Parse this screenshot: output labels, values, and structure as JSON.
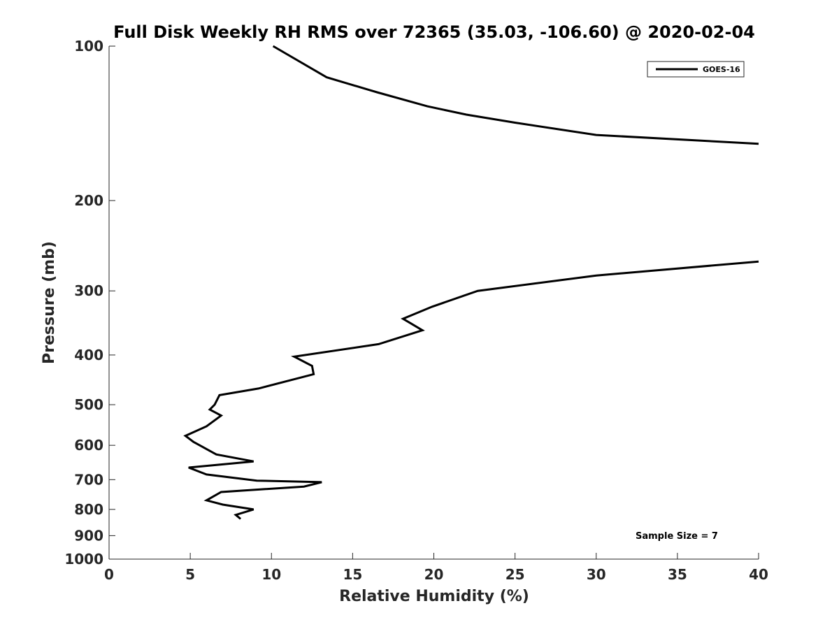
{
  "chart_data": {
    "type": "line",
    "title": "Full Disk Weekly RH RMS over 72365 (35.03, -106.60) @ 2020-02-04",
    "xlabel": "Relative Humidity (%)",
    "ylabel": "Pressure (mb)",
    "xlim": [
      0,
      40
    ],
    "ylim": [
      100,
      1000
    ],
    "y_scale": "log",
    "y_reversed": true,
    "xticks": [
      0,
      5,
      10,
      15,
      20,
      25,
      30,
      35,
      40
    ],
    "yticks": [
      100,
      200,
      300,
      400,
      500,
      600,
      700,
      800,
      900,
      1000
    ],
    "legend_position": "top-right",
    "grid": false,
    "annotation": "Sample Size = 7",
    "series": [
      {
        "name": "GOES-16",
        "color": "#000000",
        "x": [
          10.1,
          13.4,
          16.5,
          19.6,
          22.0,
          25.0,
          30.0,
          40.0,
          null,
          40.0,
          30.0,
          22.7,
          19.9,
          18.1,
          19.3,
          16.6,
          11.4,
          12.5,
          12.6,
          9.2,
          6.8,
          6.5,
          6.2,
          6.9,
          6.0,
          4.7,
          5.2,
          6.6,
          8.9,
          4.9,
          6.0,
          9.1,
          13.1,
          12.0,
          6.9,
          6.0,
          7.0,
          8.9,
          7.8,
          8.1
        ],
        "y": [
          100,
          115,
          123,
          131,
          136,
          141,
          149,
          155,
          null,
          263,
          280,
          300,
          322,
          340,
          358,
          381,
          403,
          420,
          436,
          465,
          479,
          500,
          511,
          525,
          551,
          575,
          591,
          625,
          645,
          663,
          684,
          703,
          708,
          722,
          740,
          768,
          783,
          800,
          820,
          835
        ]
      }
    ]
  }
}
